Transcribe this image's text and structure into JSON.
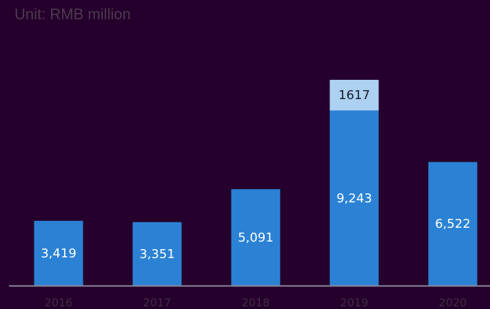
{
  "unit_label": "Unit: RMB million",
  "colors": {
    "background": "#25002c",
    "bar": "#2b82d4",
    "bar_segment": "#acd1f1",
    "axis": "#8a8a9a"
  },
  "chart_data": {
    "type": "bar",
    "stacked": true,
    "categories": [
      "2016",
      "2017",
      "2018",
      "2019",
      "2020"
    ],
    "series": [
      {
        "values": [
          3419,
          3351,
          5091,
          9243,
          6522
        ],
        "labels": [
          "3,419",
          "3,351",
          "5,091",
          "9,243",
          "6,522"
        ]
      },
      {
        "values": [
          0,
          0,
          0,
          1617,
          0
        ],
        "labels": [
          "",
          "",
          "",
          "1617",
          ""
        ]
      }
    ],
    "ylim": [
      0,
      15000
    ],
    "grid": false,
    "legend": "none"
  }
}
